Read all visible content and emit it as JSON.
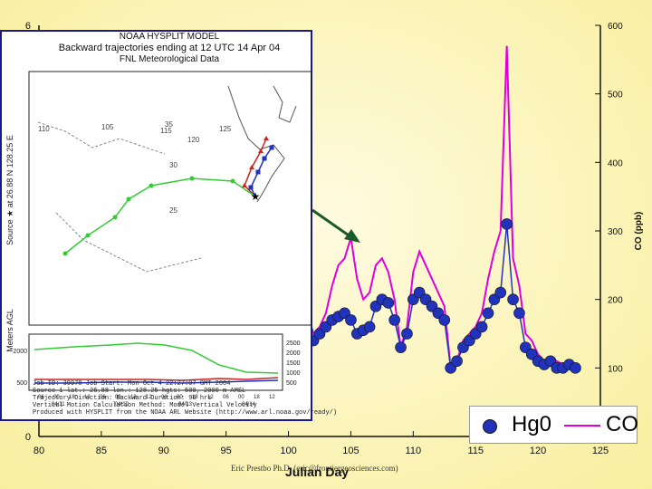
{
  "chart_data": {
    "type": "line",
    "xlabel": "Julian Day",
    "ylabel_left": "",
    "ylabel_right": "CO (ppb)",
    "xlim": [
      80,
      125
    ],
    "ylim_left": [
      0,
      6
    ],
    "ylim_right": [
      0,
      600
    ],
    "x_ticks": [
      "80",
      "85",
      "90",
      "95",
      "100",
      "105",
      "110",
      "115",
      "120",
      "125"
    ],
    "y_left_ticks": [
      "0",
      "6"
    ],
    "y_right_ticks": [
      "100",
      "200",
      "300",
      "400",
      "500",
      "600"
    ],
    "series": [
      {
        "name": "Hg0",
        "axis": "left",
        "color": "#2233bb",
        "marker": "circle",
        "x": [
          96.5,
          97,
          97.5,
          98,
          98.5,
          99,
          99.5,
          100,
          100.5,
          101,
          101.5,
          102,
          102.5,
          103,
          103.5,
          104,
          104.5,
          105,
          105.5,
          106,
          106.5,
          107,
          107.5,
          108,
          108.5,
          109,
          109.5,
          110,
          110.5,
          111,
          111.5,
          112,
          112.5,
          113,
          113.5,
          114,
          114.5,
          115,
          115.5,
          116,
          116.5,
          117,
          117.5,
          118,
          118.5,
          119,
          119.5,
          120,
          120.5,
          121,
          121.5,
          122,
          122.5,
          123
        ],
        "values": [
          1.4,
          1.5,
          1.55,
          1.6,
          1.5,
          1.35,
          1.45,
          1.5,
          1.55,
          1.6,
          1.55,
          1.4,
          1.5,
          1.6,
          1.7,
          1.75,
          1.8,
          1.7,
          1.5,
          1.55,
          1.6,
          1.9,
          2.0,
          1.95,
          1.7,
          1.3,
          1.5,
          2.0,
          2.1,
          2.0,
          1.9,
          1.8,
          1.7,
          1.0,
          1.1,
          1.3,
          1.4,
          1.5,
          1.6,
          1.8,
          2.0,
          2.1,
          3.1,
          2.0,
          1.8,
          1.3,
          1.2,
          1.1,
          1.05,
          1.1,
          1.0,
          1.0,
          1.05,
          1.0
        ]
      },
      {
        "name": "CO",
        "axis": "right",
        "color": "#dd00dd",
        "marker": "none",
        "x": [
          96.5,
          97,
          97.5,
          98,
          98.5,
          99,
          99.5,
          100,
          100.5,
          101,
          101.5,
          102,
          102.5,
          103,
          103.5,
          104,
          104.5,
          105,
          105.5,
          106,
          106.5,
          107,
          107.5,
          108,
          108.5,
          109,
          109.5,
          110,
          110.5,
          111,
          111.5,
          112,
          112.5,
          113,
          113.5,
          114,
          114.5,
          115,
          115.5,
          116,
          116.5,
          117,
          117.5,
          118,
          118.5,
          119,
          119.5,
          120,
          120.5,
          121,
          121.5,
          122,
          122.5,
          123
        ],
        "values": [
          130,
          145,
          160,
          170,
          150,
          130,
          140,
          160,
          175,
          185,
          180,
          150,
          160,
          180,
          220,
          250,
          260,
          290,
          230,
          200,
          210,
          250,
          260,
          240,
          200,
          130,
          160,
          240,
          270,
          250,
          230,
          210,
          190,
          100,
          110,
          140,
          150,
          160,
          180,
          230,
          270,
          300,
          570,
          260,
          220,
          150,
          140,
          120,
          110,
          115,
          110,
          105,
          110,
          100
        ]
      }
    ],
    "annotations": [
      "arrow pointing to CO peak near day 105"
    ]
  },
  "legend": {
    "hg_label": "Hg0",
    "co_label": "CO"
  },
  "inset": {
    "model": "NOAA HYSPLIT MODEL",
    "title": "Backward trajectories ending at 12 UTC 14 Apr 04",
    "data": "FNL Meteorological Data",
    "side_label": "Source ★ at 26.88 N 128.25 E",
    "agl_label": "Meters AGL",
    "alt_ticks_left": [
      "2000",
      "500"
    ],
    "alt_ticks_right": [
      "2500",
      "2000",
      "1500",
      "1000",
      "500"
    ],
    "time_ticks": [
      "06",
      "00",
      "18",
      "12",
      "06",
      "00",
      "18",
      "12",
      "06",
      "00",
      "18",
      "12",
      "06",
      "00",
      "18",
      "12"
    ],
    "date_ticks": [
      "04/11",
      "04/12",
      "04/13",
      "04/14"
    ],
    "lon_labels": [
      "110",
      "105",
      "115",
      "120",
      "125"
    ],
    "lat_labels": [
      "35",
      "30",
      "25"
    ],
    "footer": [
      "Job ID: 39978       Job Start: Mon Oct 4 22:27:07 GMT 2004",
      "Source 1  lat.: 26.88  lon.: 128.25  hgts: 500, 2000 m AMSL",
      "Trajectory Direction: Backward        Duration: 96 hrs",
      "Vertical Motion Calculation Method: Model Vertical Velocity",
      "Produced with HYSPLIT from the NOAA ARL Website (http://www.arl.noaa.gov/ready/)"
    ]
  },
  "footer": "Eric Prestbo Ph.D. (eric@frontiergeosciences.com)"
}
